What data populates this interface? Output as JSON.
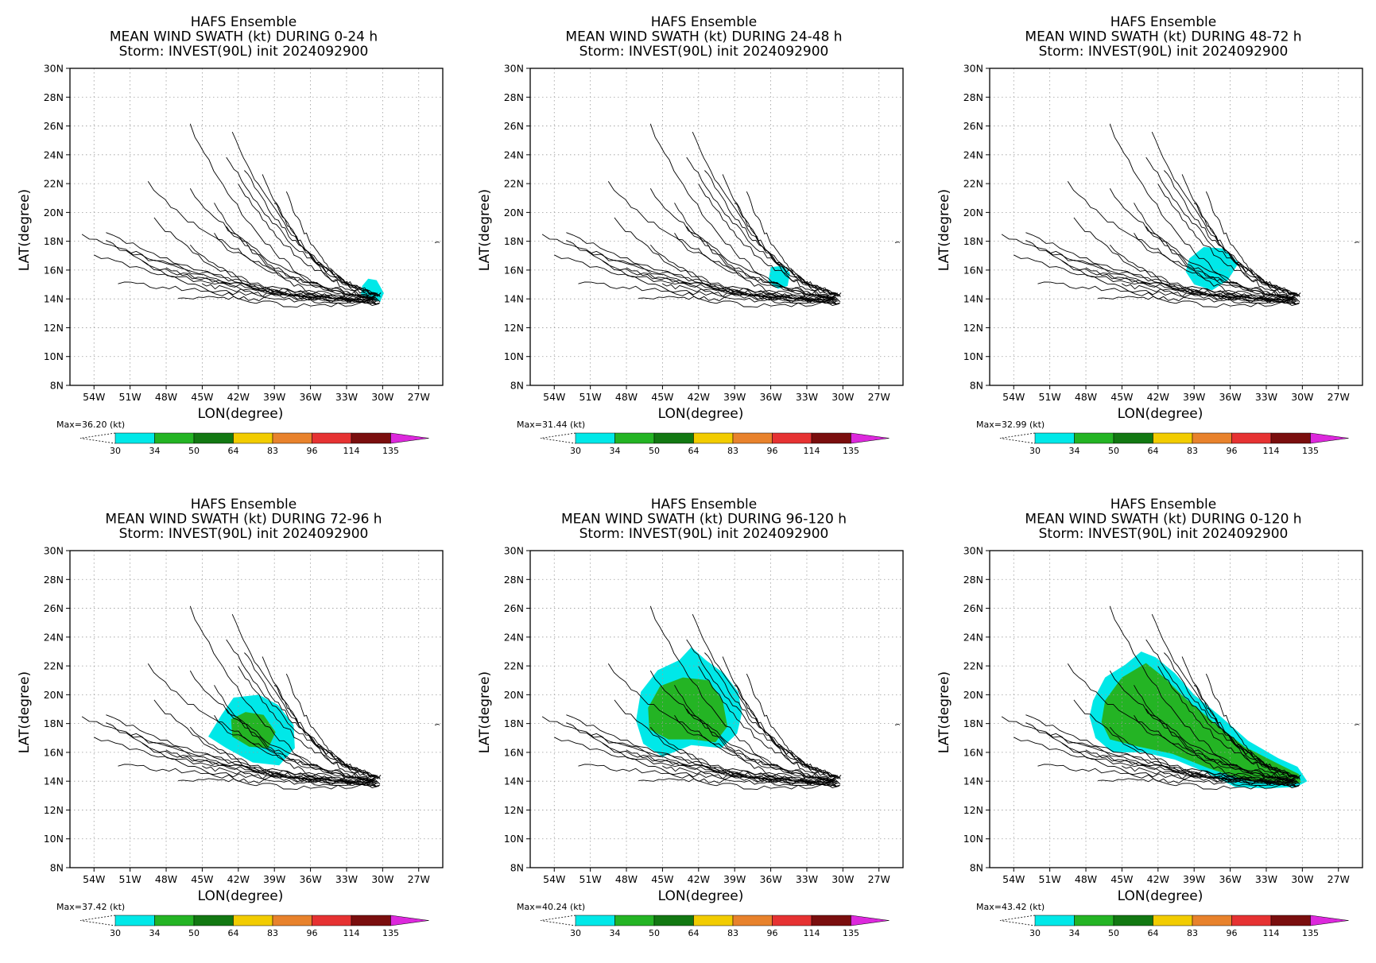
{
  "figure": {
    "panels": [
      {
        "title_lines": [
          "HAFS Ensemble",
          "MEAN WIND SWATH (kt) DURING  0-24 h",
          "Storm: INVEST(90L) init 2024092900"
        ],
        "max_label": "Max=36.20 (kt)"
      },
      {
        "title_lines": [
          "HAFS Ensemble",
          "MEAN WIND SWATH (kt) DURING 24-48 h",
          "Storm: INVEST(90L) init 2024092900"
        ],
        "max_label": "Max=31.44 (kt)"
      },
      {
        "title_lines": [
          "HAFS Ensemble",
          "MEAN WIND SWATH (kt) DURING 48-72 h",
          "Storm: INVEST(90L) init 2024092900"
        ],
        "max_label": "Max=32.99 (kt)"
      },
      {
        "title_lines": [
          "HAFS Ensemble",
          "MEAN WIND SWATH (kt) DURING 72-96 h",
          "Storm: INVEST(90L) init 2024092900"
        ],
        "max_label": "Max=37.42 (kt)"
      },
      {
        "title_lines": [
          "HAFS Ensemble",
          "MEAN WIND SWATH (kt) DURING 96-120 h",
          "Storm: INVEST(90L) init 2024092900"
        ],
        "max_label": "Max=40.24 (kt)"
      },
      {
        "title_lines": [
          "HAFS Ensemble",
          "MEAN WIND SWATH (kt) DURING 0-120 h",
          "Storm: INVEST(90L) init 2024092900"
        ],
        "max_label": "Max=43.42 (kt)"
      }
    ],
    "colorbar": {
      "levels": [
        "30",
        "34",
        "50",
        "64",
        "83",
        "96",
        "114",
        "135"
      ],
      "colors": [
        "#00e8e8",
        "#24b424",
        "#127812",
        "#f2cc00",
        "#e8822c",
        "#e63232",
        "#7a0e0e",
        "#dc28dc"
      ]
    }
  },
  "chart_data": [
    {
      "type": "map-swath",
      "xlabel": "LON(degree)",
      "ylabel": "LAT(degree)",
      "xlim": [
        -56,
        -25
      ],
      "ylim": [
        8,
        30
      ],
      "xticks": [
        "54W",
        "51W",
        "48W",
        "45W",
        "42W",
        "39W",
        "36W",
        "33W",
        "30W",
        "27W"
      ],
      "yticks": [
        "8N",
        "10N",
        "12N",
        "14N",
        "16N",
        "18N",
        "20N",
        "22N",
        "24N",
        "26N",
        "28N",
        "30N"
      ],
      "grid": true,
      "swath": [
        {
          "level": "30-34 kt",
          "color": "#00e8e8",
          "polygon": [
            [
              -31.7,
              14.9
            ],
            [
              -31.2,
              15.4
            ],
            [
              -30.5,
              15.3
            ],
            [
              -29.9,
              14.4
            ],
            [
              -30.2,
              13.8
            ],
            [
              -31.0,
              14.0
            ],
            [
              -31.8,
              14.3
            ]
          ]
        }
      ]
    },
    {
      "type": "map-swath",
      "xlabel": "LON(degree)",
      "ylabel": "LAT(degree)",
      "xlim": [
        -56,
        -25
      ],
      "ylim": [
        8,
        30
      ],
      "xticks": [
        "54W",
        "51W",
        "48W",
        "45W",
        "42W",
        "39W",
        "36W",
        "33W",
        "30W",
        "27W"
      ],
      "yticks": [
        "8N",
        "10N",
        "12N",
        "14N",
        "16N",
        "18N",
        "20N",
        "22N",
        "24N",
        "26N",
        "28N",
        "30N"
      ],
      "grid": true,
      "swath": [
        {
          "level": "30-34 kt",
          "color": "#00e8e8",
          "polygon": [
            [
              -36.0,
              16.2
            ],
            [
              -35.0,
              16.3
            ],
            [
              -34.4,
              15.8
            ],
            [
              -34.6,
              14.9
            ],
            [
              -35.4,
              14.7
            ],
            [
              -36.2,
              15.2
            ]
          ]
        }
      ]
    },
    {
      "type": "map-swath",
      "xlabel": "LON(degree)",
      "ylabel": "LAT(degree)",
      "xlim": [
        -56,
        -25
      ],
      "ylim": [
        8,
        30
      ],
      "xticks": [
        "54W",
        "51W",
        "48W",
        "45W",
        "42W",
        "39W",
        "36W",
        "33W",
        "30W",
        "27W"
      ],
      "yticks": [
        "8N",
        "10N",
        "12N",
        "14N",
        "16N",
        "18N",
        "20N",
        "22N",
        "24N",
        "26N",
        "28N",
        "30N"
      ],
      "grid": true,
      "swath": [
        {
          "level": "30-34 kt",
          "color": "#00e8e8",
          "polygon": [
            [
              -39.4,
              16.8
            ],
            [
              -38.2,
              17.6
            ],
            [
              -36.6,
              17.5
            ],
            [
              -35.3,
              16.5
            ],
            [
              -36.2,
              15.3
            ],
            [
              -37.5,
              14.6
            ],
            [
              -39.0,
              15.0
            ],
            [
              -39.7,
              15.9
            ]
          ]
        }
      ]
    },
    {
      "type": "map-swath",
      "xlabel": "LON(degree)",
      "ylabel": "LAT(degree)",
      "xlim": [
        -56,
        -25
      ],
      "ylim": [
        8,
        30
      ],
      "xticks": [
        "54W",
        "51W",
        "48W",
        "45W",
        "42W",
        "39W",
        "36W",
        "33W",
        "30W",
        "27W"
      ],
      "yticks": [
        "8N",
        "10N",
        "12N",
        "14N",
        "16N",
        "18N",
        "20N",
        "22N",
        "24N",
        "26N",
        "28N",
        "30N"
      ],
      "grid": true,
      "swath": [
        {
          "level": "30-34 kt",
          "color": "#00e8e8",
          "polygon": [
            [
              -43.4,
              18.6
            ],
            [
              -42.4,
              19.8
            ],
            [
              -40.3,
              20.0
            ],
            [
              -38.7,
              19.3
            ],
            [
              -37.4,
              17.9
            ],
            [
              -37.3,
              16.3
            ],
            [
              -38.6,
              15.1
            ],
            [
              -40.8,
              15.3
            ],
            [
              -43.0,
              16.3
            ],
            [
              -44.5,
              17.1
            ]
          ]
        },
        {
          "level": "34-50 kt",
          "color": "#24b424",
          "polygon": [
            [
              -42.6,
              18.3
            ],
            [
              -41.4,
              18.8
            ],
            [
              -39.9,
              18.6
            ],
            [
              -38.9,
              17.4
            ],
            [
              -39.5,
              16.3
            ],
            [
              -41.1,
              16.4
            ],
            [
              -42.5,
              17.1
            ]
          ]
        }
      ]
    },
    {
      "type": "map-swath",
      "xlabel": "LON(degree)",
      "ylabel": "LAT(degree)",
      "xlim": [
        -56,
        -25
      ],
      "ylim": [
        8,
        30
      ],
      "xticks": [
        "54W",
        "51W",
        "48W",
        "45W",
        "42W",
        "39W",
        "36W",
        "33W",
        "30W",
        "27W"
      ],
      "yticks": [
        "8N",
        "10N",
        "12N",
        "14N",
        "16N",
        "18N",
        "20N",
        "22N",
        "24N",
        "26N",
        "28N",
        "30N"
      ],
      "grid": true,
      "swath": [
        {
          "level": "30-34 kt",
          "color": "#00e8e8",
          "polygon": [
            [
              -46.8,
              20.2
            ],
            [
              -45.4,
              21.7
            ],
            [
              -43.6,
              22.4
            ],
            [
              -42.6,
              23.3
            ],
            [
              -41.4,
              22.4
            ],
            [
              -39.9,
              21.5
            ],
            [
              -38.7,
              20.2
            ],
            [
              -38.4,
              18.7
            ],
            [
              -38.8,
              17.3
            ],
            [
              -40.1,
              16.3
            ],
            [
              -42.6,
              16.5
            ],
            [
              -45.0,
              15.7
            ],
            [
              -46.6,
              16.6
            ],
            [
              -47.2,
              18.2
            ]
          ]
        },
        {
          "level": "34-50 kt",
          "color": "#24b424",
          "polygon": [
            [
              -46.2,
              19.1
            ],
            [
              -45.2,
              20.6
            ],
            [
              -43.3,
              21.2
            ],
            [
              -41.2,
              21.0
            ],
            [
              -40.0,
              19.6
            ],
            [
              -39.6,
              17.8
            ],
            [
              -40.6,
              16.7
            ],
            [
              -42.5,
              16.9
            ],
            [
              -44.5,
              16.9
            ],
            [
              -46.1,
              17.6
            ]
          ]
        }
      ]
    },
    {
      "type": "map-swath",
      "xlabel": "LON(degree)",
      "ylabel": "LAT(degree)",
      "xlim": [
        -56,
        -25
      ],
      "ylim": [
        8,
        30
      ],
      "xticks": [
        "54W",
        "51W",
        "48W",
        "45W",
        "42W",
        "39W",
        "36W",
        "33W",
        "30W",
        "27W"
      ],
      "yticks": [
        "8N",
        "10N",
        "12N",
        "14N",
        "16N",
        "18N",
        "20N",
        "22N",
        "24N",
        "26N",
        "28N",
        "30N"
      ],
      "grid": true,
      "swath": [
        {
          "level": "30-34 kt",
          "color": "#00e8e8",
          "polygon": [
            [
              -47.4,
              19.6
            ],
            [
              -46.4,
              21.2
            ],
            [
              -44.7,
              22.1
            ],
            [
              -43.4,
              23.0
            ],
            [
              -42.2,
              22.6
            ],
            [
              -40.6,
              21.5
            ],
            [
              -39.0,
              20.0
            ],
            [
              -36.8,
              18.5
            ],
            [
              -34.5,
              16.8
            ],
            [
              -32.0,
              15.6
            ],
            [
              -30.4,
              15.0
            ],
            [
              -29.6,
              14.0
            ],
            [
              -30.5,
              13.6
            ],
            [
              -33.0,
              13.5
            ],
            [
              -35.6,
              13.6
            ],
            [
              -38.0,
              14.6
            ],
            [
              -40.6,
              15.5
            ],
            [
              -43.2,
              16.0
            ],
            [
              -45.8,
              16.0
            ],
            [
              -47.2,
              17.0
            ],
            [
              -47.7,
              18.5
            ]
          ]
        },
        {
          "level": "34-50 kt",
          "color": "#24b424",
          "polygon": [
            [
              -46.4,
              19.6
            ],
            [
              -45.0,
              21.2
            ],
            [
              -43.0,
              22.2
            ],
            [
              -41.5,
              21.2
            ],
            [
              -39.8,
              19.8
            ],
            [
              -37.4,
              18.1
            ],
            [
              -34.8,
              16.4
            ],
            [
              -32.0,
              15.2
            ],
            [
              -30.3,
              14.5
            ],
            [
              -30.1,
              13.9
            ],
            [
              -31.3,
              13.8
            ],
            [
              -34.5,
              14.0
            ],
            [
              -37.8,
              14.9
            ],
            [
              -40.8,
              15.9
            ],
            [
              -43.6,
              16.4
            ],
            [
              -46.0,
              16.9
            ],
            [
              -46.7,
              18.1
            ]
          ]
        }
      ]
    }
  ]
}
